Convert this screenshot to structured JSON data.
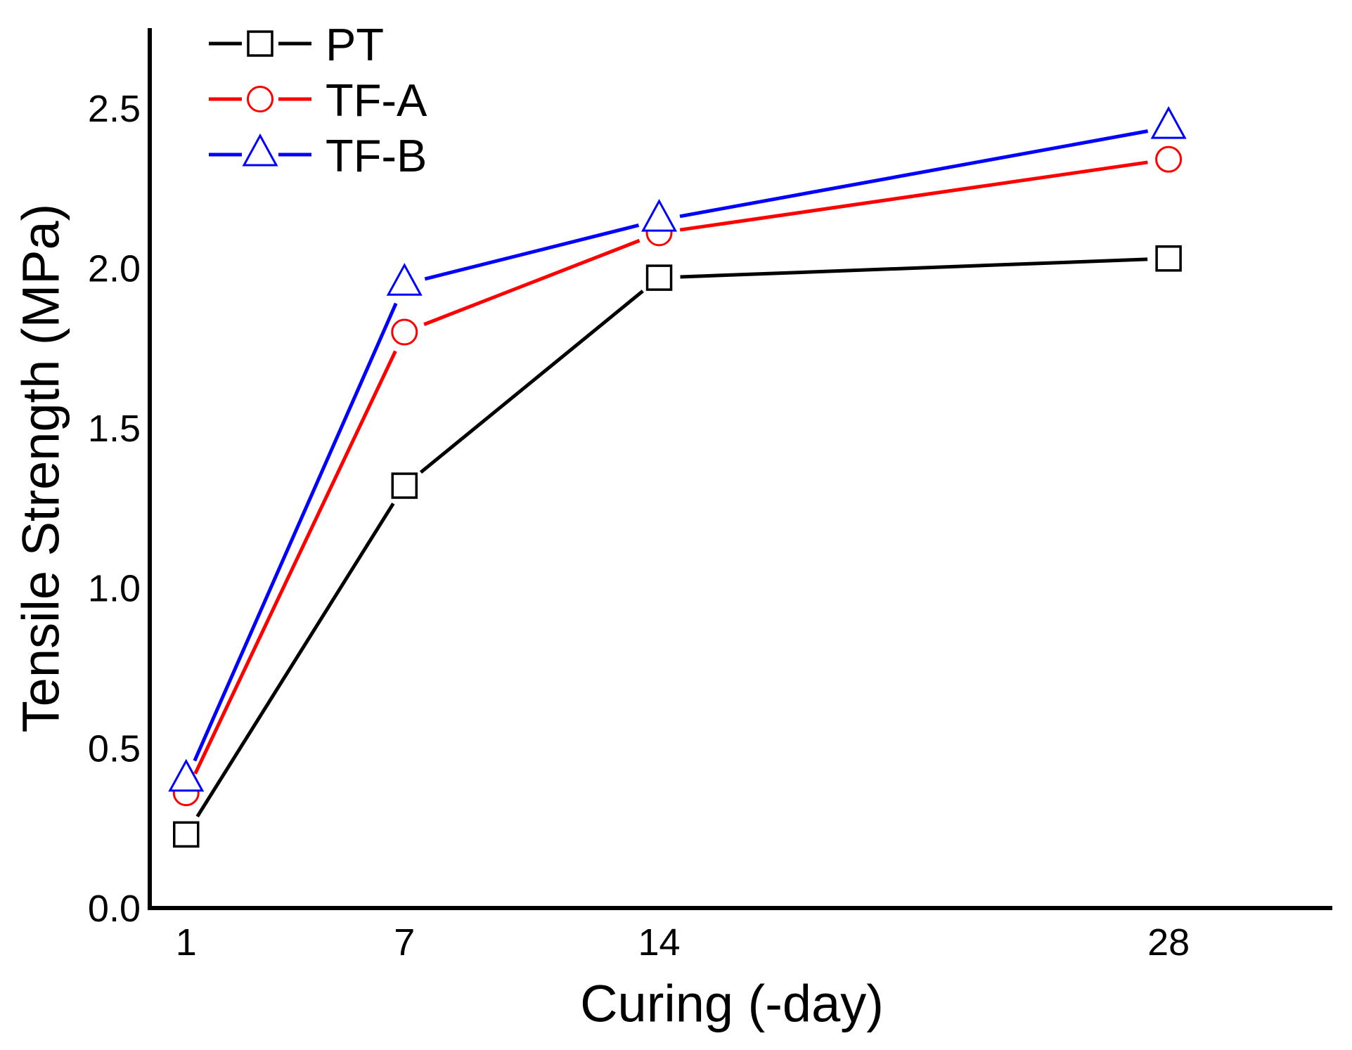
{
  "figure": {
    "background": "#FFFFFF",
    "axis_color": "#000000"
  },
  "chart_data": {
    "type": "line",
    "title": "",
    "xlabel": "Curing (-day)",
    "ylabel": "Tensile Strength (MPa)",
    "x": [
      1,
      7,
      14,
      28
    ],
    "x_tick_labels": [
      "1",
      "7",
      "14",
      "28"
    ],
    "xlim": [
      0,
      32.5
    ],
    "y_ticks": [
      0,
      0.5,
      1.0,
      1.5,
      2.0,
      2.5
    ],
    "y_tick_labels": [
      "0.0",
      "0.5",
      "1.0",
      "1.5",
      "2.0",
      "2.5"
    ],
    "ylim": [
      0,
      2.75
    ],
    "grid": false,
    "legend_position": "top-left-inside",
    "series": [
      {
        "name": "PT",
        "marker": "square",
        "color": "#000000",
        "values": [
          0.23,
          1.32,
          1.97,
          2.03
        ]
      },
      {
        "name": "TF-A",
        "marker": "circle",
        "color": "#FF0000",
        "values": [
          0.36,
          1.8,
          2.11,
          2.34
        ]
      },
      {
        "name": "TF-B",
        "marker": "triangle",
        "color": "#0000FF",
        "values": [
          0.4,
          1.95,
          2.15,
          2.44
        ]
      }
    ]
  }
}
